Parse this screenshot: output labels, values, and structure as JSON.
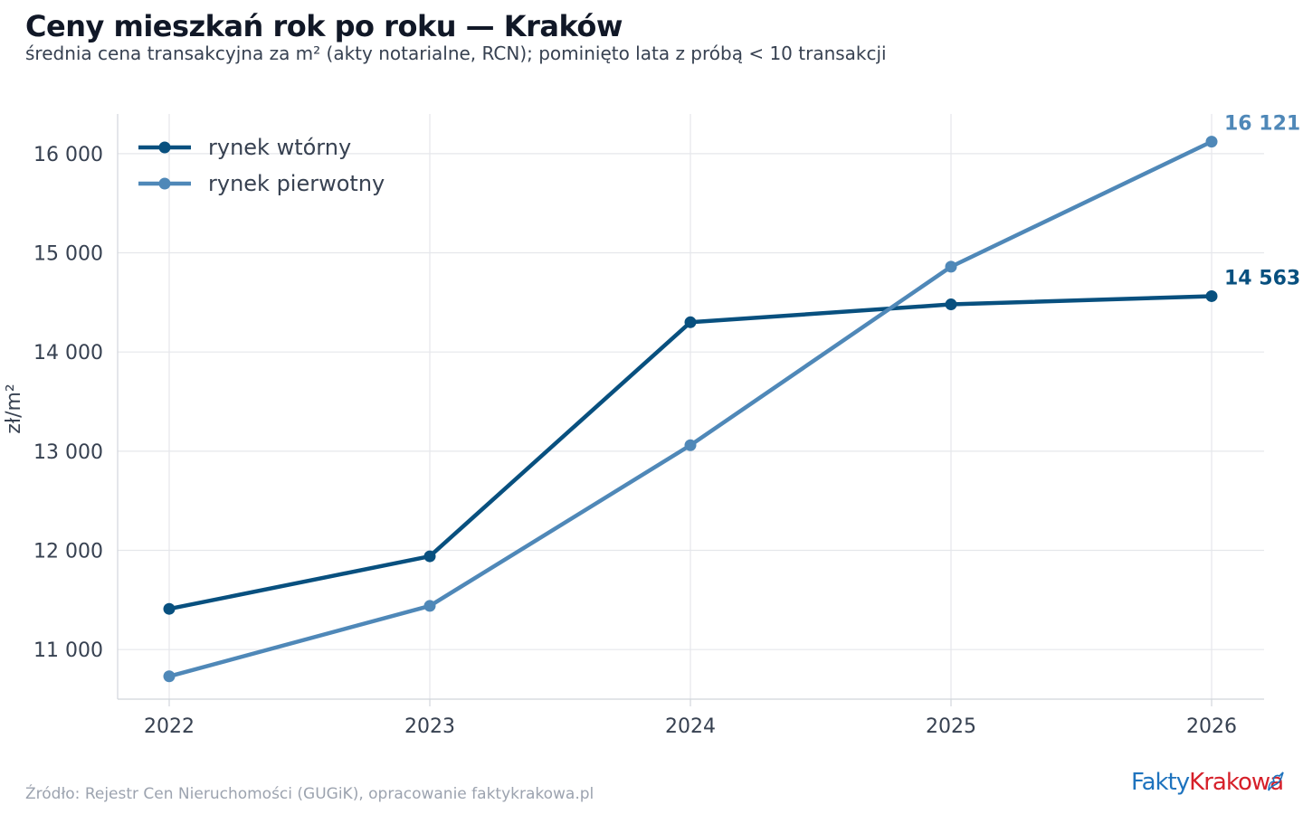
{
  "header": {
    "title": "Ceny mieszkań rok po roku — Kraków",
    "subtitle": "średnia cena transakcyjna za m² (akty notarialne, RCN); pominięto lata z próbą < 10 transakcji"
  },
  "footer": {
    "source": "Źródło: Rejestr Cen Nieruchomości (GUGiK), opracowanie faktykrakowa.pl",
    "logo_part1": "Fakty",
    "logo_part2": "Krakowa"
  },
  "colors": {
    "secondary": "#08507f",
    "primary": "#4f88b8",
    "grid": "#e5e7eb"
  },
  "chart_data": {
    "type": "line",
    "x": [
      "2022",
      "2023",
      "2024",
      "2025",
      "2026"
    ],
    "ylabel": "zł/m²",
    "ylim": [
      10500,
      16400
    ],
    "yticks": [
      11000,
      12000,
      13000,
      14000,
      15000,
      16000
    ],
    "ytick_labels": [
      "11 000",
      "12 000",
      "13 000",
      "14 000",
      "15 000",
      "16 000"
    ],
    "grid": true,
    "legend_position": "top-left",
    "series": [
      {
        "name": "rynek wtórny",
        "color": "#08507f",
        "values": [
          11410,
          11940,
          14300,
          14480,
          14563
        ],
        "end_label": "14 563"
      },
      {
        "name": "rynek pierwotny",
        "color": "#4f88b8",
        "values": [
          10730,
          11440,
          13060,
          14860,
          16121
        ],
        "end_label": "16 121"
      }
    ]
  }
}
